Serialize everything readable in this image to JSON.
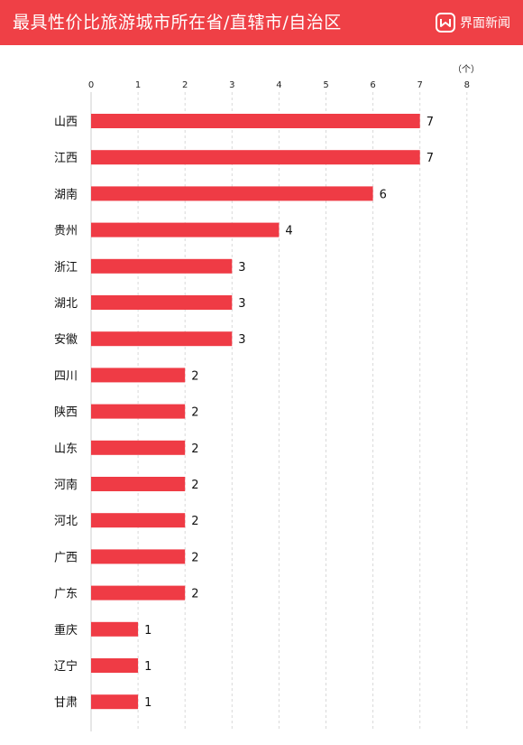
{
  "header": {
    "title": "最具性价比旅游城市所在省/直辖市/自治区",
    "brand_name": "界面新闻",
    "brand_icon": "jiemian-logo-icon"
  },
  "colors": {
    "header_bg": "#ef4046",
    "bar": "#ef3b45",
    "grid": "#d9d9d9"
  },
  "chart_data": {
    "type": "bar",
    "orientation": "horizontal",
    "title": "最具性价比旅游城市所在省/直辖市/自治区",
    "unit_label": "（个）",
    "xlim": [
      0,
      8
    ],
    "x_ticks": [
      0,
      1,
      2,
      3,
      4,
      5,
      6,
      7,
      8
    ],
    "grid": true,
    "categories": [
      "山西",
      "江西",
      "湖南",
      "贵州",
      "浙江",
      "湖北",
      "安徽",
      "四川",
      "陕西",
      "山东",
      "河南",
      "河北",
      "广西",
      "广东",
      "重庆",
      "辽宁",
      "甘肃"
    ],
    "values": [
      7,
      7,
      6,
      4,
      3,
      3,
      3,
      2,
      2,
      2,
      2,
      2,
      2,
      2,
      1,
      1,
      1
    ]
  }
}
